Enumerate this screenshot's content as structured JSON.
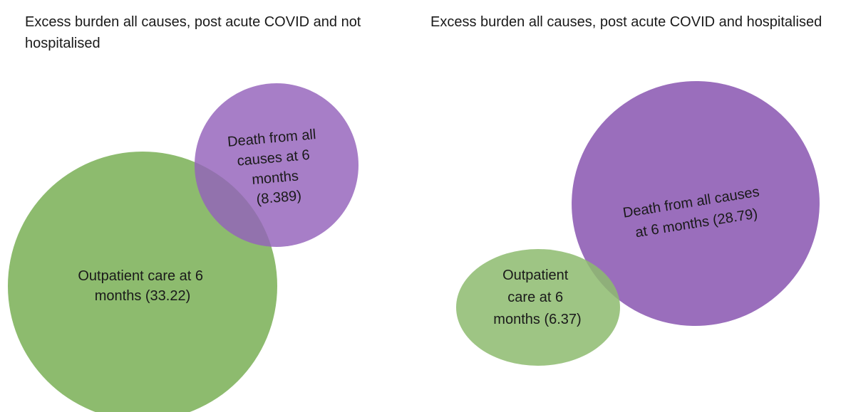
{
  "panels": [
    {
      "title_lines": [
        "Excess burden all causes, post acute COVID and not",
        "hospitalised"
      ],
      "sets": [
        {
          "lines": [
            "Outpatient care at 6",
            "months (33.22)"
          ]
        },
        {
          "lines": [
            "Death from all",
            "causes at 6",
            "months",
            "(8.389)"
          ]
        }
      ]
    },
    {
      "title_lines": [
        "Excess burden all causes, post acute COVID and hospitalised"
      ],
      "sets": [
        {
          "lines": [
            "Outpatient",
            "care at 6",
            "months (6.37)"
          ]
        },
        {
          "lines": [
            "Death from all causes",
            "at 6 months (28.79)"
          ]
        }
      ]
    }
  ]
}
